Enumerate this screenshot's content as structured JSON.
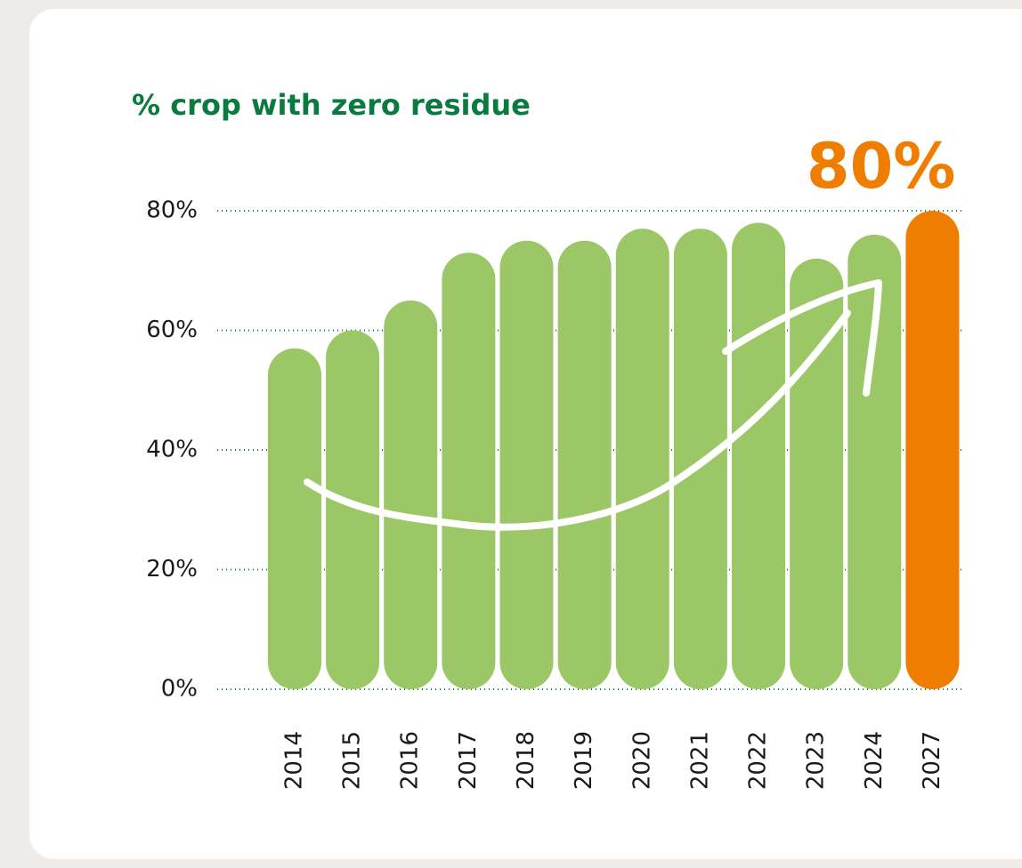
{
  "chart_data": {
    "type": "bar",
    "title": "% crop with zero residue",
    "categories": [
      "2014",
      "2015",
      "2016",
      "2017",
      "2018",
      "2019",
      "2020",
      "2021",
      "2022",
      "2023",
      "2024",
      "2027"
    ],
    "values": [
      57,
      60,
      65,
      73,
      75,
      75,
      77,
      77,
      78,
      72,
      76,
      80
    ],
    "colors": [
      "#9bc766",
      "#9bc766",
      "#9bc766",
      "#9bc766",
      "#9bc766",
      "#9bc766",
      "#9bc766",
      "#9bc766",
      "#9bc766",
      "#9bc766",
      "#9bc766",
      "#ef7d00"
    ],
    "annotation": "80%",
    "ylim": [
      0,
      80
    ],
    "yticks": [
      {
        "value": 0,
        "label": "0%"
      },
      {
        "value": 20,
        "label": "20%"
      },
      {
        "value": 40,
        "label": "40%"
      },
      {
        "value": 60,
        "label": "60%"
      },
      {
        "value": 80,
        "label": "80%"
      }
    ],
    "grid": true
  }
}
